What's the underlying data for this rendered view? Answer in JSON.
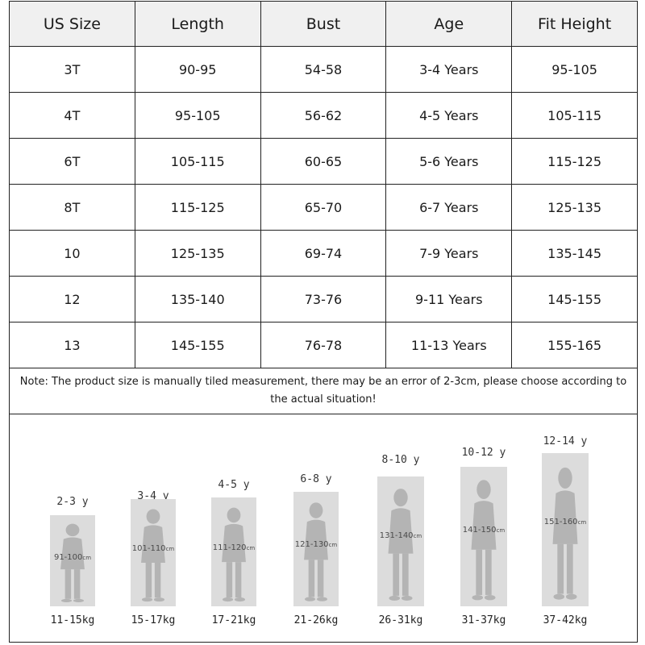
{
  "table": {
    "headers": [
      "US Size",
      "Length",
      "Bust",
      "Age",
      "Fit Height"
    ],
    "rows": [
      [
        "3T",
        "90-95",
        "54-58",
        "3-4 Years",
        "95-105"
      ],
      [
        "4T",
        "95-105",
        "56-62",
        "4-5 Years",
        "105-115"
      ],
      [
        "6T",
        "105-115",
        "60-65",
        "5-6 Years",
        "115-125"
      ],
      [
        "8T",
        "115-125",
        "65-70",
        "6-7 Years",
        "125-135"
      ],
      [
        "10",
        "125-135",
        "69-74",
        "7-9 Years",
        "135-145"
      ],
      [
        "12",
        "135-140",
        "73-76",
        "9-11 Years",
        "145-155"
      ],
      [
        "13",
        "145-155",
        "76-78",
        "11-13 Years",
        "155-165"
      ]
    ]
  },
  "note": "Note: The product size is manually tiled measurement, there may be an error of 2-3cm, please choose according to the actual situation!",
  "chart": {
    "unit": "cm",
    "kids": [
      {
        "age": "2-3 y",
        "height": "91-100",
        "weight": "11-15kg"
      },
      {
        "age": "3-4 y",
        "height": "101-110",
        "weight": "15-17kg"
      },
      {
        "age": "4-5 y",
        "height": "111-120",
        "weight": "17-21kg"
      },
      {
        "age": "6-8 y",
        "height": "121-130",
        "weight": "21-26kg"
      },
      {
        "age": "8-10 y",
        "height": "131-140",
        "weight": "26-31kg"
      },
      {
        "age": "10-12 y",
        "height": "141-150",
        "weight": "31-37kg"
      },
      {
        "age": "12-14 y",
        "height": "151-160",
        "weight": "37-42kg"
      }
    ]
  }
}
